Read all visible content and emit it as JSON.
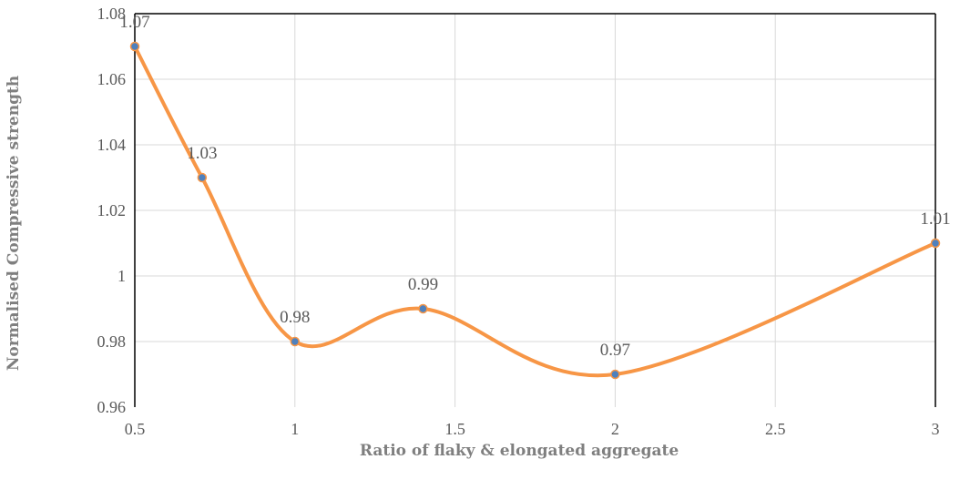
{
  "chart_data": {
    "type": "line",
    "title": "",
    "xlabel": "Ratio of flaky & elongated aggregate",
    "ylabel": "Normalised Compressive strength",
    "xlim": [
      0.5,
      3
    ],
    "ylim": [
      0.96,
      1.08
    ],
    "x_ticks": [
      0.5,
      1,
      1.5,
      2,
      2.5,
      3
    ],
    "x_tick_labels": [
      "0.5",
      "1",
      "1.5",
      "2",
      "2.5",
      "3"
    ],
    "y_ticks": [
      0.96,
      0.98,
      1,
      1.02,
      1.04,
      1.06,
      1.08
    ],
    "y_tick_labels": [
      "0.96",
      "0.98",
      "1",
      "1.02",
      "1.04",
      "1.06",
      "1.08"
    ],
    "grid": true,
    "smooth": true,
    "series": [
      {
        "x": [
          0.5,
          0.71,
          1,
          1.4,
          2,
          3
        ],
        "y": [
          1.07,
          1.03,
          0.98,
          0.99,
          0.97,
          1.01
        ],
        "labels": [
          "1.07",
          "1.03",
          "0.98",
          "0.99",
          "0.97",
          "1.01"
        ],
        "line_color": "#F79646",
        "marker_color": "#4F81BD"
      }
    ]
  }
}
